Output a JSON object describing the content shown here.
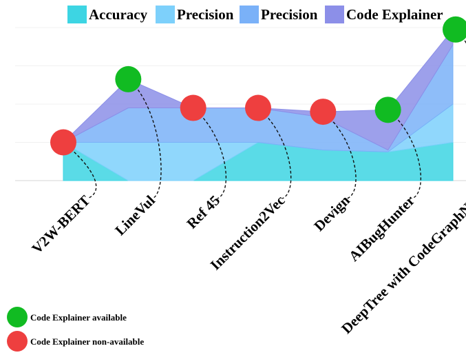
{
  "chart_data": {
    "type": "area",
    "stacked": true,
    "categories": [
      "V2W-BERT",
      "LineVul",
      "Ref 45",
      "Instruction2Vec",
      "Devign",
      "AIBugHunter",
      "DeepTree with CodeGraphNet"
    ],
    "series": [
      {
        "name": "Accuracy",
        "color": "#3dd5e3",
        "values": [
          1.0,
          0.0,
          0.0,
          1.0,
          0.8,
          0.75,
          1.0
        ]
      },
      {
        "name": "Precision",
        "color": "#7dd0fb",
        "values": [
          0.0,
          1.0,
          1.0,
          0.0,
          0.0,
          0.0,
          1.0
        ]
      },
      {
        "name": "Precision",
        "color": "#7ab1f8",
        "values": [
          0.0,
          0.9,
          0.9,
          0.9,
          0.85,
          0.05,
          1.55
        ]
      },
      {
        "name": "Code Explainer",
        "color": "#8c8fe8",
        "values": [
          0.0,
          0.75,
          0.0,
          0.0,
          0.15,
          1.05,
          0.4
        ]
      }
    ],
    "markers": [
      {
        "category": "V2W-BERT",
        "status": "non-available"
      },
      {
        "category": "LineVul",
        "status": "available"
      },
      {
        "category": "Ref 45",
        "status": "non-available"
      },
      {
        "category": "Instruction2Vec",
        "status": "non-available"
      },
      {
        "category": "Devign",
        "status": "non-available"
      },
      {
        "category": "AIBugHunter",
        "status": "available"
      },
      {
        "category": "DeepTree with CodeGraphNet",
        "status": "available"
      }
    ],
    "marker_legend": [
      {
        "status": "available",
        "label": "Code Explainer available",
        "color": "#11bb22"
      },
      {
        "status": "non-available",
        "label": "Code Explainer non-available",
        "color": "#ee3f3f"
      }
    ],
    "ylim": [
      0,
      4
    ],
    "grid": true,
    "legend_position": "top"
  }
}
